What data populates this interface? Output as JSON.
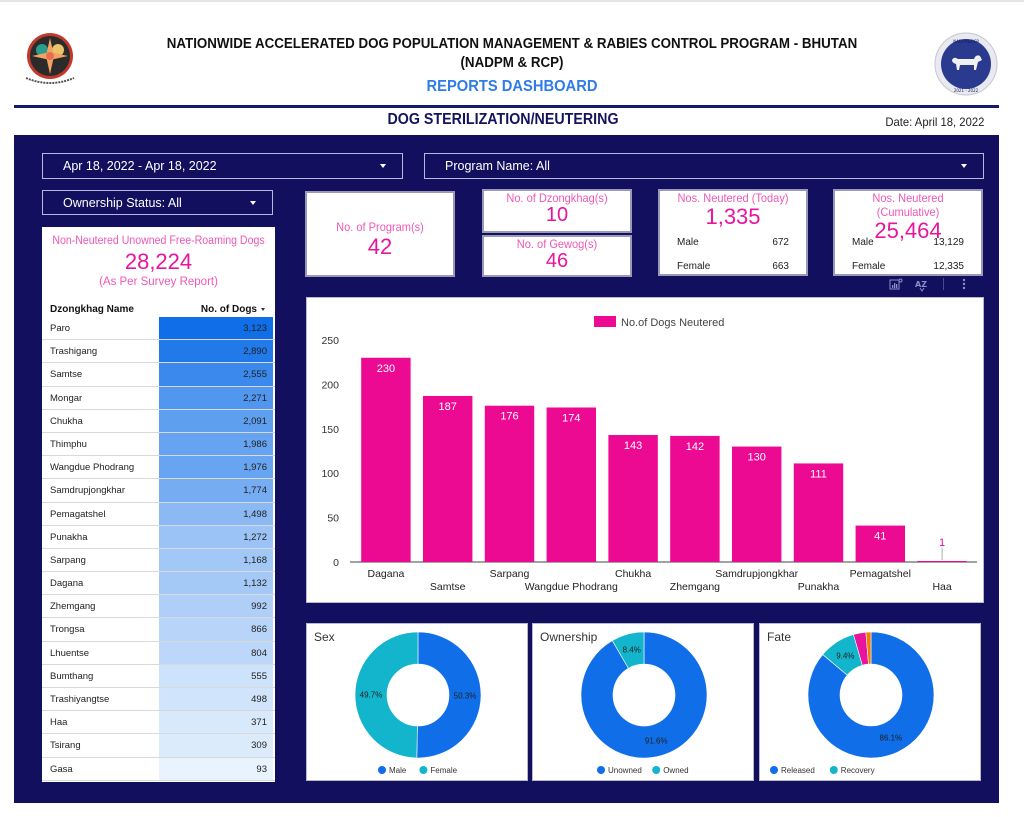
{
  "header": {
    "title_line1": "NATIONWIDE ACCELERATED DOG POPULATION MANAGEMENT & RABIES CONTROL PROGRAM - BHUTAN",
    "title_line2": "(NADPM & RCP)",
    "subtitle": "REPORTS DASHBOARD",
    "section_title": "DOG STERILIZATION/NEUTERING",
    "date_label": "Date: April 18, 2022",
    "left_logo": "bhutan-emblem",
    "right_logo": "nadpm-dog-logo",
    "right_logo_text_top": "NADPM&RCP",
    "right_logo_text_bottom": "2021 - 2022"
  },
  "filters": {
    "date_range": "Apr 18, 2022 - Apr 18, 2022",
    "program_name": "Program Name: All",
    "ownership_status": "Ownership Status: All"
  },
  "unowned_table": {
    "title": "Non-Neutered Unowned Free-Roaming Dogs",
    "total": "28,224",
    "note": "(As Per Survey Report)",
    "columns": [
      "Dzongkhag Name",
      "No. of Dogs"
    ],
    "rows": [
      {
        "name": "Paro",
        "value": "3,123",
        "n": 3123
      },
      {
        "name": "Trashigang",
        "value": "2,890",
        "n": 2890
      },
      {
        "name": "Samtse",
        "value": "2,555",
        "n": 2555
      },
      {
        "name": "Mongar",
        "value": "2,271",
        "n": 2271
      },
      {
        "name": "Chukha",
        "value": "2,091",
        "n": 2091
      },
      {
        "name": "Thimphu",
        "value": "1,986",
        "n": 1986
      },
      {
        "name": "Wangdue Phodrang",
        "value": "1,976",
        "n": 1976
      },
      {
        "name": "Samdrupjongkhar",
        "value": "1,774",
        "n": 1774
      },
      {
        "name": "Pemagatshel",
        "value": "1,498",
        "n": 1498
      },
      {
        "name": "Punakha",
        "value": "1,272",
        "n": 1272
      },
      {
        "name": "Sarpang",
        "value": "1,168",
        "n": 1168
      },
      {
        "name": "Dagana",
        "value": "1,132",
        "n": 1132
      },
      {
        "name": "Zhemgang",
        "value": "992",
        "n": 992
      },
      {
        "name": "Trongsa",
        "value": "866",
        "n": 866
      },
      {
        "name": "Lhuentse",
        "value": "804",
        "n": 804
      },
      {
        "name": "Bumthang",
        "value": "555",
        "n": 555
      },
      {
        "name": "Trashiyangtse",
        "value": "498",
        "n": 498
      },
      {
        "name": "Haa",
        "value": "371",
        "n": 371
      },
      {
        "name": "Tsirang",
        "value": "309",
        "n": 309
      },
      {
        "name": "Gasa",
        "value": "93",
        "n": 93
      }
    ]
  },
  "kpis": {
    "programs": {
      "label": "No. of Program(s)",
      "value": "42"
    },
    "dzongkhags": {
      "label": "No. of Dzongkhag(s)",
      "value": "10"
    },
    "gewogs": {
      "label": "No. of Gewog(s)",
      "value": "46"
    },
    "today": {
      "label": "Nos. Neutered (Today)",
      "value": "1,335",
      "male_label": "Male",
      "male": "672",
      "female_label": "Female",
      "female": "663"
    },
    "cumulative": {
      "label": "Nos. Neutered (Cumulative)",
      "value": "25,464",
      "male_label": "Male",
      "male": "13,129",
      "female_label": "Female",
      "female": "12,335"
    }
  },
  "chart_toolbar": {
    "icons": [
      "chart-insights-icon",
      "sort-az-icon",
      "more-vert-icon"
    ]
  },
  "colors": {
    "bar": "#ec0a92",
    "blue": "#0f6ee8",
    "teal": "#12b5cb",
    "magenta": "#e8149e",
    "orange": "#f57c00",
    "panel": "#120f5e"
  },
  "chart_data": [
    {
      "type": "bar",
      "title": "",
      "legend": [
        "No.of Dogs Neutered"
      ],
      "legend_position": "top-center",
      "categories": [
        "Dagana",
        "Samtse",
        "Sarpang",
        "Wangdue Phodrang",
        "Chukha",
        "Zhemgang",
        "Samdrupjongkhar",
        "Punakha",
        "Pemagatshel",
        "Haa"
      ],
      "values": [
        230,
        187,
        176,
        174,
        143,
        142,
        130,
        111,
        41,
        1
      ],
      "xlabel": "",
      "ylabel": "",
      "ylim": [
        0,
        250
      ],
      "yticks": [
        0,
        50,
        100,
        150,
        200,
        250
      ],
      "grid": false
    },
    {
      "type": "pie",
      "title": "Sex",
      "labels": [
        "Male",
        "Female"
      ],
      "values": [
        50.3,
        49.7
      ],
      "value_labels": [
        "50.3%",
        "49.7%"
      ],
      "legend": [
        "Male",
        "Female"
      ],
      "legend_position": "bottom"
    },
    {
      "type": "pie",
      "title": "Ownership",
      "labels": [
        "Unowned",
        "Owned"
      ],
      "values": [
        91.6,
        8.4
      ],
      "value_labels": [
        "91.6%",
        "8.4%"
      ],
      "legend": [
        "Unowned",
        "Owned"
      ],
      "legend_position": "bottom"
    },
    {
      "type": "pie",
      "title": "Fate",
      "labels": [
        "Released",
        "Recovery",
        "Other (unlabeled)",
        "Other (unlabeled)"
      ],
      "values": [
        86.1,
        9.4,
        3.2,
        1.3
      ],
      "value_labels": [
        "86.1%",
        "9.4%",
        "",
        ""
      ],
      "legend": [
        "Released",
        "Recovery"
      ],
      "legend_position": "bottom"
    }
  ]
}
